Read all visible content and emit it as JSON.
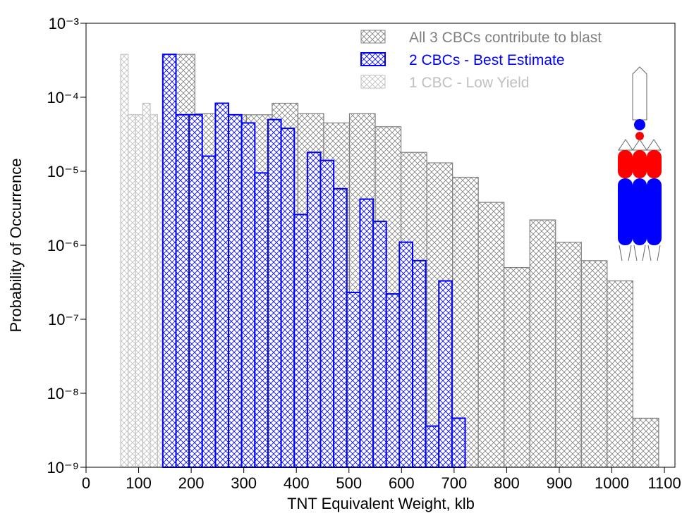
{
  "chart_data": {
    "type": "histogram",
    "xlabel": "TNT Equivalent Weight, klb",
    "ylabel": "Probability of Occurrence",
    "xlim": [
      0,
      1120
    ],
    "ylim": [
      1e-09,
      0.001
    ],
    "log_y": true,
    "xticks": [
      0,
      100,
      200,
      300,
      400,
      500,
      600,
      700,
      800,
      900,
      1000,
      1100
    ],
    "yticks": [
      {
        "value": 1e-09,
        "label": "10⁻⁹"
      },
      {
        "value": 1e-08,
        "label": "10⁻⁸"
      },
      {
        "value": 1e-07,
        "label": "10⁻⁷"
      },
      {
        "value": 1e-06,
        "label": "10⁻⁶"
      },
      {
        "value": 1e-05,
        "label": "10⁻⁵"
      },
      {
        "value": 0.0001,
        "label": "10⁻⁴"
      },
      {
        "value": 0.001,
        "label": "10⁻³"
      }
    ],
    "legend": "upper right",
    "series": [
      {
        "name": "All 3 CBCs contribute to blast",
        "color": "#808080",
        "bins": [
          158,
          207,
          256,
          305,
          354,
          403,
          452,
          501,
          550,
          599,
          648,
          697,
          746,
          795,
          844,
          893,
          942,
          991,
          1040,
          1089
        ],
        "values": [
          0.00038,
          6e-05,
          5.8e-05,
          5.8e-05,
          8.3e-05,
          6e-05,
          4.5e-05,
          6e-05,
          4e-05,
          1.8e-05,
          1.3e-05,
          8.3e-06,
          3.8e-06,
          5e-07,
          2.2e-06,
          1.1e-06,
          6.2e-07,
          3.3e-07,
          4.6e-09
        ]
      },
      {
        "name": "1 CBC - Low Yield",
        "color": "#c0c0c0",
        "bins": [
          66,
          80,
          94,
          108,
          122,
          136,
          150,
          164,
          178,
          192,
          206,
          220,
          234,
          248,
          262,
          276,
          290,
          304,
          318,
          332,
          346
        ],
        "values": [
          0.00038,
          5.8e-05,
          5.8e-05,
          8.3e-05,
          5.8e-05,
          4.5e-05,
          2.2e-05,
          1.1e-05,
          9e-06,
          5e-06,
          3e-06,
          1.1e-06,
          4e-06,
          1.5e-06,
          2.5e-07,
          1.4e-06,
          6e-07,
          2.5e-07,
          3e-07,
          1e-07
        ]
      },
      {
        "name": "2 CBCs - Best Estimate",
        "color": "#0000ff",
        "bins": [
          146,
          171,
          196,
          221,
          246,
          271,
          296,
          321,
          346,
          371,
          396,
          421,
          446,
          471,
          496,
          521,
          546,
          571,
          596,
          621,
          646,
          671,
          696,
          721
        ],
        "values": [
          0.00038,
          5.8e-05,
          5.8e-05,
          1.6e-05,
          8.3e-05,
          5.8e-05,
          4.5e-05,
          9.5e-06,
          5e-05,
          3.8e-05,
          2.6e-06,
          1.8e-05,
          1.4e-05,
          5.8e-06,
          2.3e-07,
          4.2e-06,
          2.1e-06,
          2.2e-07,
          1.1e-06,
          6.2e-07,
          3.6e-09,
          3.3e-07,
          4.6e-09
        ]
      }
    ]
  }
}
